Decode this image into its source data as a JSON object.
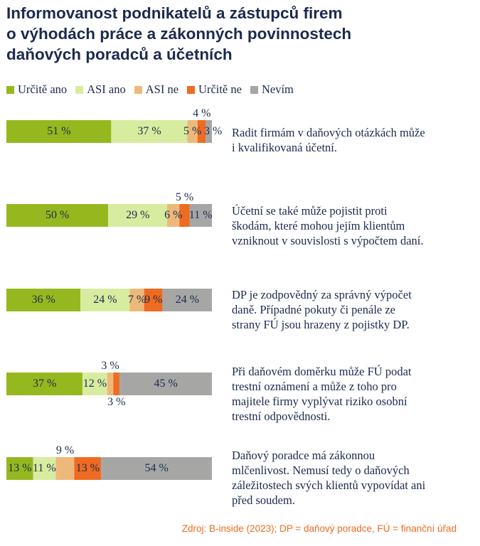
{
  "title_lines": [
    "Informovanost podnikatelů a zástupců firem",
    "o výhodách práce a zákonných povinnostech",
    "daňových poradců a účetních"
  ],
  "source": "Zdroj: B-inside (2023); DP = daňový poradce, FÚ = finanční úřad",
  "chart_data": {
    "type": "bar",
    "orientation": "horizontal",
    "stacked": true,
    "xlim": [
      0,
      100
    ],
    "unit": "%",
    "legend": [
      {
        "name": "Určitě ano",
        "color": "#95b81f"
      },
      {
        "name": "ASI ano",
        "color": "#d8eca0"
      },
      {
        "name": "ASI ne",
        "color": "#edb97a"
      },
      {
        "name": "Určitě ne",
        "color": "#ef6b21"
      },
      {
        "name": "Nevím",
        "color": "#a6a7a5"
      }
    ],
    "rows": [
      {
        "description": [
          "Radit firmám v daňových otázkách může",
          "i kvalifikovaná účetní."
        ],
        "values": [
          51,
          37,
          5,
          4,
          3
        ],
        "labels": [
          "51 %",
          "37 %",
          "5 %",
          "4 %",
          "3 %"
        ]
      },
      {
        "description": [
          "Účetní se také může pojistit proti",
          "škodám, které mohou jejím klientům",
          "vzniknout v souvislosti s výpočtem daní."
        ],
        "values": [
          50,
          29,
          6,
          5,
          11
        ],
        "labels": [
          "50 %",
          "29 %",
          "6 %",
          "5 %",
          "11 %"
        ]
      },
      {
        "description": [
          "DP je zodpovědný za správný výpočet",
          "daně. Případné pokuty či penále ze",
          "strany FÚ jsou hrazeny z pojistky DP."
        ],
        "values": [
          36,
          24,
          7,
          9,
          24
        ],
        "labels": [
          "36 %",
          "24 %",
          "7 %",
          "9 %",
          "24 %"
        ]
      },
      {
        "description": [
          "Při daňovém doměrku může FÚ podat",
          "trestní oznámení a může z toho pro",
          "majitele firmy vyplývat riziko osobní",
          "trestní odpovědnosti."
        ],
        "values": [
          37,
          12,
          3,
          3,
          45
        ],
        "labels": [
          "37 %",
          "12 %",
          "3 %",
          "3 %",
          "45 %"
        ]
      },
      {
        "description": [
          "Daňový poradce má zákonnou",
          "mlčenlivost. Nemusí tedy o daňových",
          "záležitostech svých klientů vypovídat ani",
          "před soudem."
        ],
        "values": [
          13,
          11,
          9,
          13,
          54
        ],
        "labels": [
          "13 %",
          "11 %",
          "9 %",
          "13 %",
          "54 %"
        ]
      }
    ]
  }
}
